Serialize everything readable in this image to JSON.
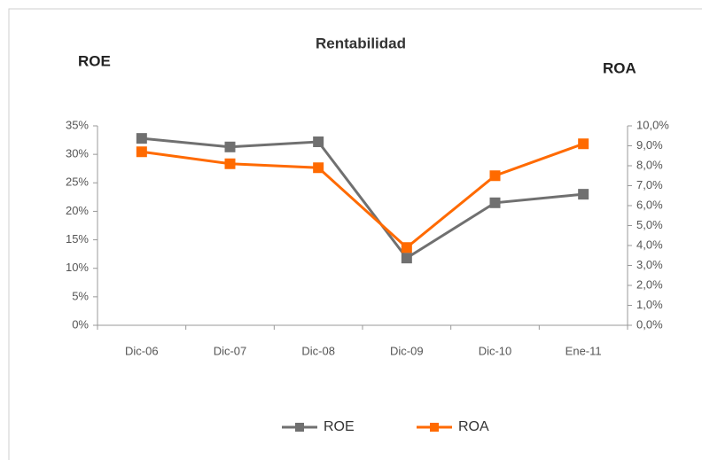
{
  "chart_data": {
    "type": "line",
    "title": "Rentabilidad",
    "y_label": "ROE",
    "y2_label": "ROA",
    "categories": [
      "Dic-06",
      "Dic-07",
      "Dic-08",
      "Dic-09",
      "Dic-10",
      "Ene-11"
    ],
    "series": [
      {
        "name": "ROE",
        "color": "#707070",
        "values": [
          32.8,
          31.3,
          32.2,
          11.8,
          21.5,
          23.0
        ]
      },
      {
        "name": "ROA",
        "color": "#ff6a00",
        "axis": "y2",
        "values": [
          8.7,
          8.1,
          7.9,
          3.9,
          7.5,
          9.1
        ]
      }
    ],
    "ylim": [
      0,
      35
    ],
    "yticks": [
      {
        "value": 0,
        "label": "0%"
      },
      {
        "value": 5,
        "label": "5%"
      },
      {
        "value": 10,
        "label": "10%"
      },
      {
        "value": 15,
        "label": "15%"
      },
      {
        "value": 20,
        "label": "20%"
      },
      {
        "value": 25,
        "label": "25%"
      },
      {
        "value": 30,
        "label": "30%"
      },
      {
        "value": 35,
        "label": "35%"
      }
    ],
    "y2lim": [
      0,
      10
    ],
    "y2ticks": [
      {
        "value": 0,
        "label": "0,0%"
      },
      {
        "value": 1,
        "label": "1,0%"
      },
      {
        "value": 2,
        "label": "2,0%"
      },
      {
        "value": 3,
        "label": "3,0%"
      },
      {
        "value": 4,
        "label": "4,0%"
      },
      {
        "value": 5,
        "label": "5,0%"
      },
      {
        "value": 6,
        "label": "6,0%"
      },
      {
        "value": 7,
        "label": "7,0%"
      },
      {
        "value": 8,
        "label": "8,0%"
      },
      {
        "value": 9,
        "label": "9,0%"
      },
      {
        "value": 10,
        "label": "10,0%"
      }
    ],
    "legend": "bottom",
    "grid": false
  }
}
